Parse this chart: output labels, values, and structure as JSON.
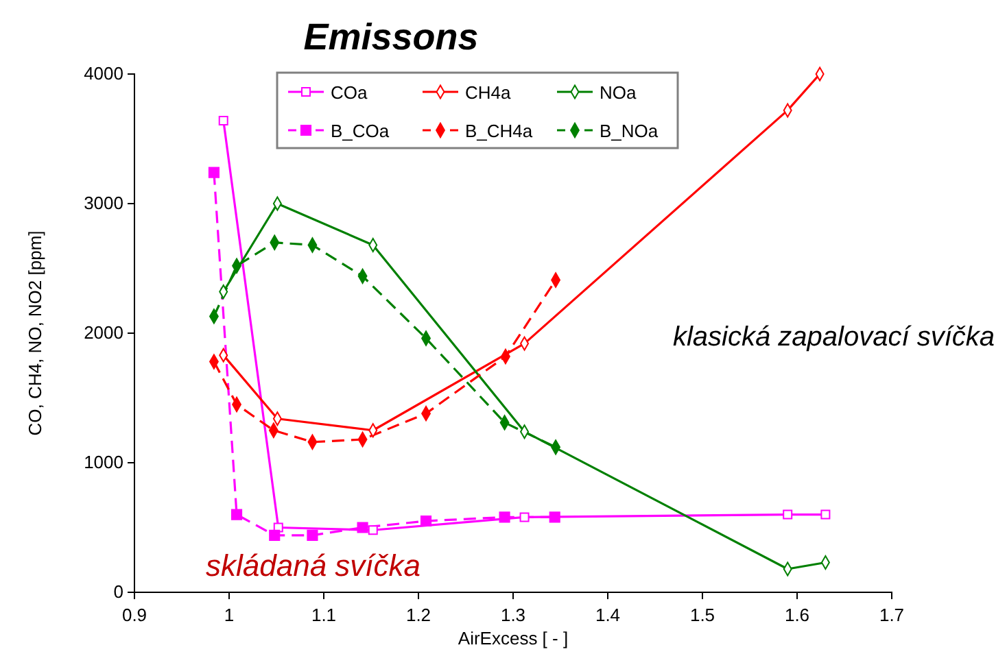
{
  "chart_data": {
    "type": "line",
    "title": "Emissons",
    "xlabel": "AirExcess [ - ]",
    "ylabel": "CO, CH4, NO, NO2 [ppm]",
    "xlim": [
      0.9,
      1.7
    ],
    "xticks": [
      0.9,
      1,
      1.1,
      1.2,
      1.3,
      1.4,
      1.5,
      1.6,
      1.7
    ],
    "ylim": [
      0,
      4000
    ],
    "yticks": [
      0,
      1000,
      2000,
      3000,
      4000
    ],
    "grid": false,
    "legend": "top",
    "series": [
      {
        "name": "COa",
        "color": "#ff00ff",
        "marker": "square",
        "line_style": "solid",
        "x": [
          0.994,
          1.052,
          1.152,
          1.312,
          1.59,
          1.63
        ],
        "values": [
          3640,
          500,
          480,
          580,
          600,
          600
        ]
      },
      {
        "name": "CH4a",
        "color": "#ff0000",
        "marker": "diamond",
        "line_style": "solid",
        "x": [
          0.994,
          1.051,
          1.152,
          1.312,
          1.59,
          1.624
        ],
        "values": [
          1830,
          1340,
          1250,
          1920,
          3720,
          4000
        ]
      },
      {
        "name": "NOa",
        "color": "#008000",
        "marker": "diamond",
        "line_style": "solid",
        "x": [
          0.994,
          1.051,
          1.152,
          1.312,
          1.59,
          1.63
        ],
        "values": [
          2320,
          3000,
          2680,
          1240,
          180,
          230
        ]
      },
      {
        "name": "B_COa",
        "color": "#ff00ff",
        "marker": "square",
        "line_style": "dashed",
        "x": [
          0.984,
          1.008,
          1.048,
          1.088,
          1.141,
          1.208,
          1.291,
          1.344
        ],
        "values": [
          3240,
          600,
          440,
          440,
          500,
          550,
          580,
          580
        ]
      },
      {
        "name": "B_CH4a",
        "color": "#ff0000",
        "marker": "diamond",
        "line_style": "dashed",
        "x": [
          0.984,
          1.008,
          1.047,
          1.088,
          1.141,
          1.208,
          1.292,
          1.345
        ],
        "values": [
          1780,
          1450,
          1250,
          1160,
          1180,
          1380,
          1820,
          2410
        ]
      },
      {
        "name": "B_NOa",
        "color": "#008000",
        "marker": "diamond",
        "line_style": "dashed",
        "x": [
          0.984,
          1.008,
          1.048,
          1.088,
          1.141,
          1.208,
          1.291,
          1.345
        ],
        "values": [
          2130,
          2520,
          2700,
          2680,
          2440,
          1960,
          1310,
          1120
        ]
      }
    ],
    "annotations": [
      "klasická zapalovací svíčka",
      "skládaná svíčka"
    ]
  }
}
